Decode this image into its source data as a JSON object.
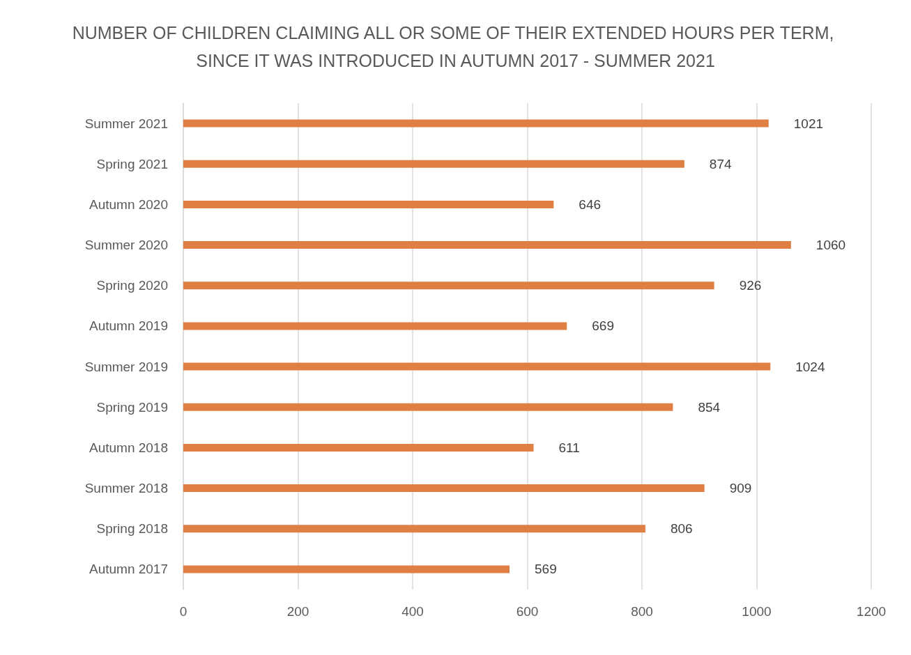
{
  "chart_data": {
    "type": "bar",
    "orientation": "horizontal",
    "title": "NUMBER OF CHILDREN CLAIMING ALL OR SOME OF THEIR EXTENDED HOURS PER TERM, SINCE IT WAS INTRODUCED IN AUTUMN 2017 - SUMMER 2021",
    "categories": [
      "Summer 2021",
      "Spring 2021",
      "Autumn 2020",
      "Summer 2020",
      "Spring 2020",
      "Autumn 2019",
      "Summer 2019",
      "Spring 2019",
      "Autumn 2018",
      "Summer 2018",
      "Spring 2018",
      "Autumn 2017"
    ],
    "values": [
      1021,
      874,
      646,
      1060,
      926,
      669,
      1024,
      854,
      611,
      909,
      806,
      569
    ],
    "color": "#e07f44",
    "xlim": [
      0,
      1200
    ],
    "xticks": [
      0,
      200,
      400,
      600,
      800,
      1000,
      1200
    ],
    "grid": "x",
    "data_labels": true
  }
}
